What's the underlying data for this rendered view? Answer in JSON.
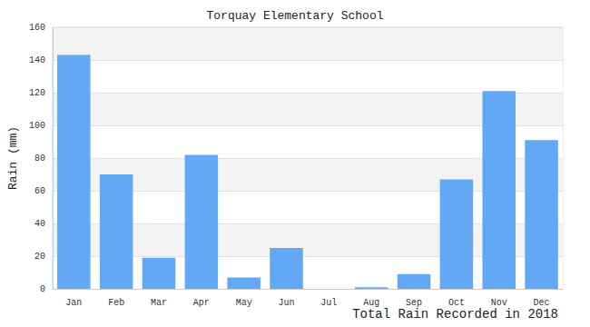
{
  "chart_data": {
    "type": "bar",
    "title": "Torquay Elementary School",
    "x_label": "Total Rain Recorded in 2018",
    "y_label": "Rain (mm)",
    "categories": [
      "Jan",
      "Feb",
      "Mar",
      "Apr",
      "May",
      "Jun",
      "Jul",
      "Aug",
      "Sep",
      "Oct",
      "Nov",
      "Dec"
    ],
    "values": [
      143,
      70,
      19,
      82,
      7,
      25,
      0,
      1,
      9,
      67,
      121,
      91
    ],
    "color": "#62a8f5",
    "ylim": [
      0,
      160
    ],
    "yticks": [
      0,
      20,
      40,
      60,
      80,
      100,
      120,
      140,
      160
    ],
    "grid": true
  }
}
